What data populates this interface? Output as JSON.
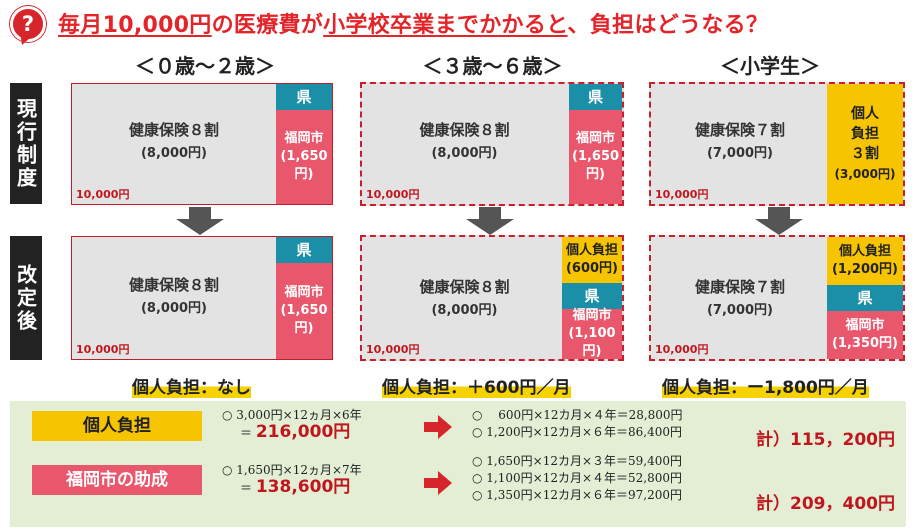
{
  "header": {
    "icon": "question-mark-icon",
    "title_part1": "毎月10,000円",
    "title_part2": "の医療費が",
    "title_part3": "小学校卒業までかかると",
    "title_part4": "、負担はどうなる？"
  },
  "columns": [
    "＜０歳〜２歳＞",
    "＜３歳〜６歳＞",
    "＜小学生＞"
  ],
  "rows": {
    "current": "現行制度",
    "revised": "改定後"
  },
  "current": {
    "col1": {
      "main": "健康保険８割",
      "sub": "(8,000円)",
      "total": "10,000円",
      "ken": "県",
      "fuku1": "福岡市",
      "fuku2": "(1,650円)"
    },
    "col2": {
      "main": "健康保険８割",
      "sub": "(8,000円)",
      "total": "10,000円",
      "ken": "県",
      "fuku1": "福岡市",
      "fuku2": "(1,650円)"
    },
    "col3": {
      "main": "健康保険７割",
      "sub": "(7,000円)",
      "total": "10,000円",
      "kojin1": "個人",
      "kojin2": "負担",
      "kojin3": "３割",
      "kojin4": "(3,000円)"
    }
  },
  "revised": {
    "col1": {
      "main": "健康保険８割",
      "sub": "(8,000円)",
      "total": "10,000円",
      "ken": "県",
      "fuku1": "福岡市",
      "fuku2": "(1,650円)"
    },
    "col2": {
      "main": "健康保険８割",
      "sub": "(8,000円)",
      "total": "10,000円",
      "kojin1": "個人負担",
      "kojin2": "(600円)",
      "ken": "県",
      "fuku1": "福岡市",
      "fuku2": "(1,100円)"
    },
    "col3": {
      "main": "健康保険７割",
      "sub": "(7,000円)",
      "total": "10,000円",
      "kojin1": "個人負担",
      "kojin2": "(1,200円)",
      "ken": "県",
      "fuku1": "福岡市",
      "fuku2": "(1,350円)"
    }
  },
  "burden": [
    "個人負担：なし",
    "個人負担：＋600円／月",
    "個人負担：ー1,800円／月"
  ],
  "summary": {
    "kojin": {
      "tag": "個人負担",
      "before1": "○ 3,000円×12ヵ月×6年",
      "before2_prefix": "＝",
      "before2_value": "216,000円",
      "after1": "○　 600円×12カ月×４年＝28,800円",
      "after2": "○ 1,200円×12カ月×６年＝86,400円",
      "total": "計）115，200円"
    },
    "fukuoka": {
      "tag": "福岡市の助成",
      "before1": "○ 1,650円×12ヵ月×7年",
      "before2_prefix": "＝",
      "before2_value": "138,600円",
      "after1": "○ 1,650円×12カ月×３年＝59,400円",
      "after2": "○ 1,100円×12カ月×４年＝52,800円",
      "after3": "○ 1,350円×12カ月×６年＝97,200円",
      "total": "計）209，400円"
    }
  },
  "colors": {
    "accent_red": "#e3252a",
    "prefecture_teal": "#1b8fa8",
    "fukuoka_pink": "#e8576c",
    "individual_yellow": "#f6c400",
    "summary_bg": "#e3eed5"
  }
}
